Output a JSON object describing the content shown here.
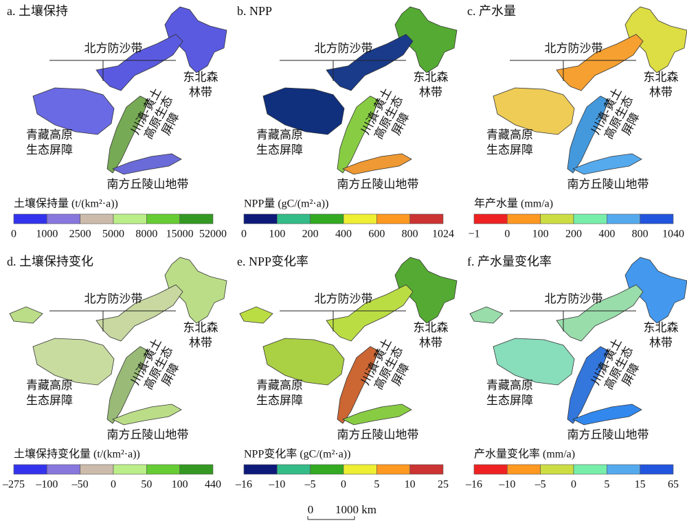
{
  "panels": [
    {
      "title": "a. 土壤保持",
      "regions": {
        "north": "北方防沙带",
        "northeast": [
          "东北森",
          "林带"
        ],
        "sichuan": [
          "川滇-黄土",
          "高原生态",
          "屏障"
        ],
        "tibet": [
          "青藏高原",
          "生态屏障"
        ],
        "south": "南方丘陵山地带"
      },
      "legend": {
        "title": "土壤保持量 (t/(km²·a))",
        "colors": [
          "#3333ee",
          "#8877dd",
          "#ccbbaa",
          "#bbee88",
          "#66cc33",
          "#339922"
        ],
        "labels": [
          "0",
          "1000",
          "2500",
          "5000",
          "8000",
          "15000",
          "52000"
        ]
      }
    },
    {
      "title": "b. NPP",
      "regions": {
        "north": "北方防沙带",
        "northeast": [
          "东北森",
          "林带"
        ],
        "sichuan": [
          "川滇-黄土",
          "高原生态",
          "屏障"
        ],
        "tibet": [
          "青藏高原",
          "生态屏障"
        ],
        "south": "南方丘陵山地带"
      },
      "legend": {
        "title": "NPP量 (gC/(m²·a))",
        "colors": [
          "#0d1a7a",
          "#33bb88",
          "#33aa22",
          "#eeee33",
          "#ff9922",
          "#cc3333"
        ],
        "labels": [
          "0",
          "100",
          "200",
          "400",
          "600",
          "800",
          "1024"
        ]
      }
    },
    {
      "title": "c. 产水量",
      "regions": {
        "north": "北方防沙带",
        "northeast": [
          "东北森",
          "林带"
        ],
        "sichuan": [
          "川滇-黄土",
          "高原生态",
          "屏障"
        ],
        "tibet": [
          "青藏高原",
          "生态屏障"
        ],
        "south": "南方丘陵山地带"
      },
      "legend": {
        "title": "年产水量 (mm/a)",
        "colors": [
          "#ee2222",
          "#ff9922",
          "#ccdd44",
          "#77eeaa",
          "#55aaee",
          "#2255dd"
        ],
        "labels": [
          "−1",
          "0",
          "100",
          "200",
          "400",
          "800",
          "1040"
        ]
      }
    },
    {
      "title": "d. 土壤保持变化",
      "regions": {
        "north": "北方防沙带",
        "northeast": [
          "东北森",
          "林带"
        ],
        "sichuan": [
          "川滇-黄土",
          "高原生态",
          "屏障"
        ],
        "tibet": [
          "青藏高原",
          "生态屏障"
        ],
        "south": "南方丘陵山地带"
      },
      "legend": {
        "title": "土壤保持变化量 (t/(km²·a))",
        "colors": [
          "#3333ee",
          "#8877dd",
          "#ccbbaa",
          "#bbee88",
          "#66cc33",
          "#339922"
        ],
        "labels": [
          "–275",
          "–100",
          "–50",
          "0",
          "50",
          "100",
          "440"
        ]
      }
    },
    {
      "title": "e. NPP变化率",
      "regions": {
        "north": "北方防沙带",
        "northeast": [
          "东北森",
          "林带"
        ],
        "sichuan": [
          "川滇-黄土",
          "高原生态",
          "屏障"
        ],
        "tibet": [
          "青藏高原",
          "生态屏障"
        ],
        "south": "南方丘陵山地带"
      },
      "legend": {
        "title": "NPP变化率 (gC/(m²·a))",
        "colors": [
          "#0d1a7a",
          "#33bb88",
          "#33aa22",
          "#eeee33",
          "#ff9922",
          "#cc3333"
        ],
        "labels": [
          "–16",
          "–10",
          "–5",
          "0",
          "5",
          "10",
          "25"
        ]
      }
    },
    {
      "title": "f. 产水量变化率",
      "regions": {
        "north": "北方防沙带",
        "northeast": [
          "东北森",
          "林带"
        ],
        "sichuan": [
          "川滇-黄土",
          "高原生态",
          "屏障"
        ],
        "tibet": [
          "青藏高原",
          "生态屏障"
        ],
        "south": "南方丘陵山地带"
      },
      "legend": {
        "title": "产水量变化率 (mm/a)",
        "colors": [
          "#ee2222",
          "#ff9922",
          "#ccdd44",
          "#77eeaa",
          "#55aaee",
          "#2255dd"
        ],
        "labels": [
          "–16",
          "–10",
          "–5",
          "0",
          "5",
          "15",
          "65"
        ]
      }
    }
  ],
  "scale_bar": {
    "start": "0",
    "end": "1000 km"
  }
}
